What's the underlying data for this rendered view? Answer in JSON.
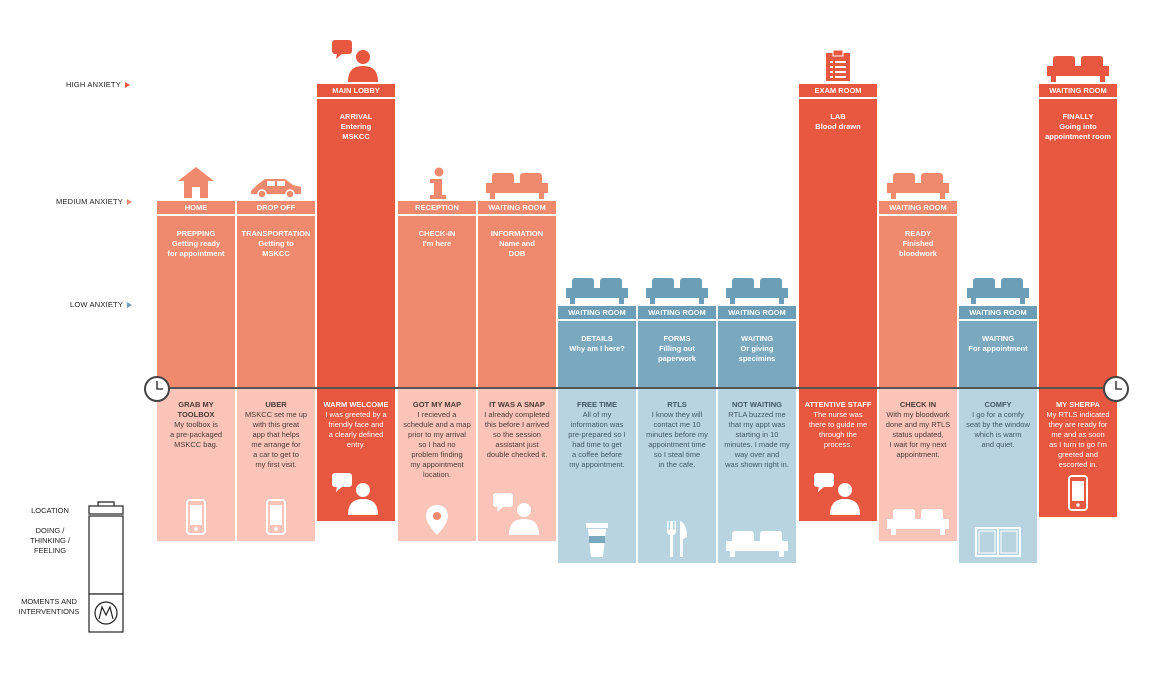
{
  "levels": [
    {
      "label": "HIGH ANXIETY",
      "color": "#e8573f"
    },
    {
      "label": "MEDIUM ANXIETY",
      "color": "#f08a6e"
    },
    {
      "label": "LOW ANXIETY",
      "color": "#6c9fb7"
    }
  ],
  "legend": {
    "location": "LOCATION",
    "doing": "DOING /\nTHINKING /\nFEELING",
    "moments": "MOMENTS AND\nINTERVENTIONS"
  },
  "columns": [
    {
      "location": "HOME",
      "title": "PREPPING",
      "sub": "Getting ready\nfor appointment",
      "level": "medium",
      "top_icon": "house-icon",
      "m_title": "GRAB MY\nTOOLBOX",
      "m_desc": "My toolbox is\na pre-packaged\nMSKCC bag.",
      "bottom_icon": "phone-icon"
    },
    {
      "location": "DROP OFF",
      "title": "TRANSPORTATION",
      "sub": "Getting to\nMSKCC",
      "level": "medium",
      "top_icon": "car-icon",
      "m_title": "UBER",
      "m_desc": "MSKCC set me up\nwith this great\napp that helps\nme arrange for\na car to get to\nmy first visit.",
      "bottom_icon": "phone-icon"
    },
    {
      "location": "MAIN LOBBY",
      "title": "ARRIVAL",
      "sub": "Entering\nMSKCC",
      "level": "high",
      "top_icon": "person-speech-icon",
      "m_title": "WARM WELCOME",
      "m_desc": "I was greeted by a\nfriendly face and\na clearly defined\nentry.",
      "bottom_icon": "person-speech-icon"
    },
    {
      "location": "RECEPTION",
      "title": "CHECK-IN",
      "sub": "I'm here",
      "level": "medium",
      "top_icon": "info-icon",
      "m_title": "GOT MY MAP",
      "m_desc": "I recieved a\nschedule and a map\nprior to my arrival\nso I had no\nproblem finding\nmy appointment\nlocation.",
      "bottom_icon": "map-pin-icon"
    },
    {
      "location": "WAITING ROOM",
      "title": "INFORMATION",
      "sub": "Name and\nDOB",
      "level": "medium",
      "top_icon": "couch-icon",
      "m_title": "IT WAS A SNAP",
      "m_desc": "I already completed\nthis before I arrived\nso the session\nassistant just\ndouble checked it.",
      "bottom_icon": "person-speech-icon"
    },
    {
      "location": "WAITING ROOM",
      "title": "DETAILS",
      "sub": "Why am I here?",
      "level": "low",
      "top_icon": "couch-icon",
      "m_title": "FREE TIME",
      "m_desc": "All of my\ninformation was\npre-prepared so I\nhad time to get\na coffee before\nmy appointment.",
      "bottom_icon": "coffee-icon"
    },
    {
      "location": "WAITING ROOM",
      "title": "FORMS",
      "sub": "Filling out\npaperwork",
      "level": "low",
      "top_icon": "couch-icon",
      "m_title": "RTLS",
      "m_desc": "I know they will\ncontact me 10\nminutes before my\nappointment time\nso I steal time\nin the cafe.",
      "bottom_icon": "fork-knife-icon"
    },
    {
      "location": "WAITING ROOM",
      "title": "WAITING",
      "sub": "Or giving\nspecimins",
      "level": "low",
      "top_icon": "couch-icon",
      "m_title": "NOT WAITING",
      "m_desc": "RTLA buzzed me\nthat my appt was\nstarting in 10\nminutes. I made my\nway over and\nwas shown right in.",
      "bottom_icon": "couch-icon"
    },
    {
      "location": "EXAM ROOM",
      "title": "LAB",
      "sub": "Blood drawn",
      "level": "high",
      "top_icon": "clipboard-icon",
      "m_title": "ATTENTIVE STAFF",
      "m_desc": "The nurse was\nthere to guide me\nthrough the\nprocess.",
      "bottom_icon": "person-speech-icon"
    },
    {
      "location": "WAITING ROOM",
      "title": "READY",
      "sub": "Finished\nbloodwork",
      "level": "medium",
      "top_icon": "couch-icon",
      "m_title": "CHECK IN",
      "m_desc": "With my bloodwork\ndone and my RTLS\nstatus updated,\nI wait for my next\nappointment.",
      "bottom_icon": "couch-icon"
    },
    {
      "location": "WAITING ROOM",
      "title": "WAITING",
      "sub": "For appointment",
      "level": "low",
      "top_icon": "couch-icon",
      "m_title": "COMFY",
      "m_desc": "I go for a comfy\nseat by the window\nwhich is warm\nand quiet.",
      "bottom_icon": "book-icon"
    },
    {
      "location": "WAITING ROOM",
      "title": "FINALLY",
      "sub": "Going into\nappointment room",
      "level": "high",
      "top_icon": "couch-icon",
      "m_title": "MY SHERPA",
      "m_desc": "My RTLS indicated\nthey are ready for\nme and as soon\nas I turn to go I'm\ngreeted and\nescorted in.",
      "bottom_icon": "phone-icon"
    }
  ],
  "colors": {
    "high": "#e8573f",
    "medium": "#f08a6e",
    "low": "#7aa8bf",
    "high_label": "#e8573f",
    "medium_label": "#f08a6e",
    "low_label": "#6c9fb7",
    "pale_red": "#fac5b8",
    "pale_blue": "#b9d4e1",
    "text_dark": "#4a3a36",
    "axis": "#555555"
  }
}
